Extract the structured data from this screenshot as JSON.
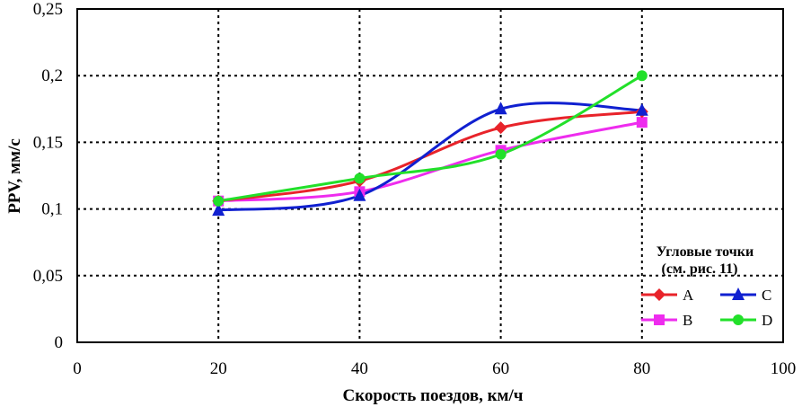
{
  "chart_data": {
    "type": "line",
    "xlabel": "Скорость поездов, км/ч",
    "ylabel": "PPV, мм/с",
    "xlim": [
      0,
      100
    ],
    "ylim": [
      0,
      0.25
    ],
    "x_ticks": [
      "0",
      "20",
      "40",
      "60",
      "80",
      "100"
    ],
    "y_ticks": [
      "0",
      "0,05",
      "0,1",
      "0,15",
      "0,2",
      "0,25"
    ],
    "grid": "dotted, black",
    "legend": {
      "title_line1": "Угловые точки",
      "title_line2": "(см. рис. 11)",
      "placement": "bottom-right"
    },
    "series": [
      {
        "name": "A",
        "color": "#e8232a",
        "marker": "diamond",
        "x": [
          20,
          40,
          60,
          80
        ],
        "y": [
          0.106,
          0.121,
          0.161,
          0.173
        ]
      },
      {
        "name": "B",
        "color": "#ee2cee",
        "marker": "square",
        "x": [
          20,
          40,
          60,
          80
        ],
        "y": [
          0.106,
          0.113,
          0.144,
          0.165
        ]
      },
      {
        "name": "C",
        "color": "#1020d0",
        "marker": "triangle",
        "x": [
          20,
          40,
          60,
          80
        ],
        "y": [
          0.099,
          0.11,
          0.175,
          0.174
        ]
      },
      {
        "name": "D",
        "color": "#22e02a",
        "marker": "circle",
        "x": [
          20,
          40,
          60,
          80
        ],
        "y": [
          0.106,
          0.123,
          0.141,
          0.2
        ]
      }
    ]
  }
}
